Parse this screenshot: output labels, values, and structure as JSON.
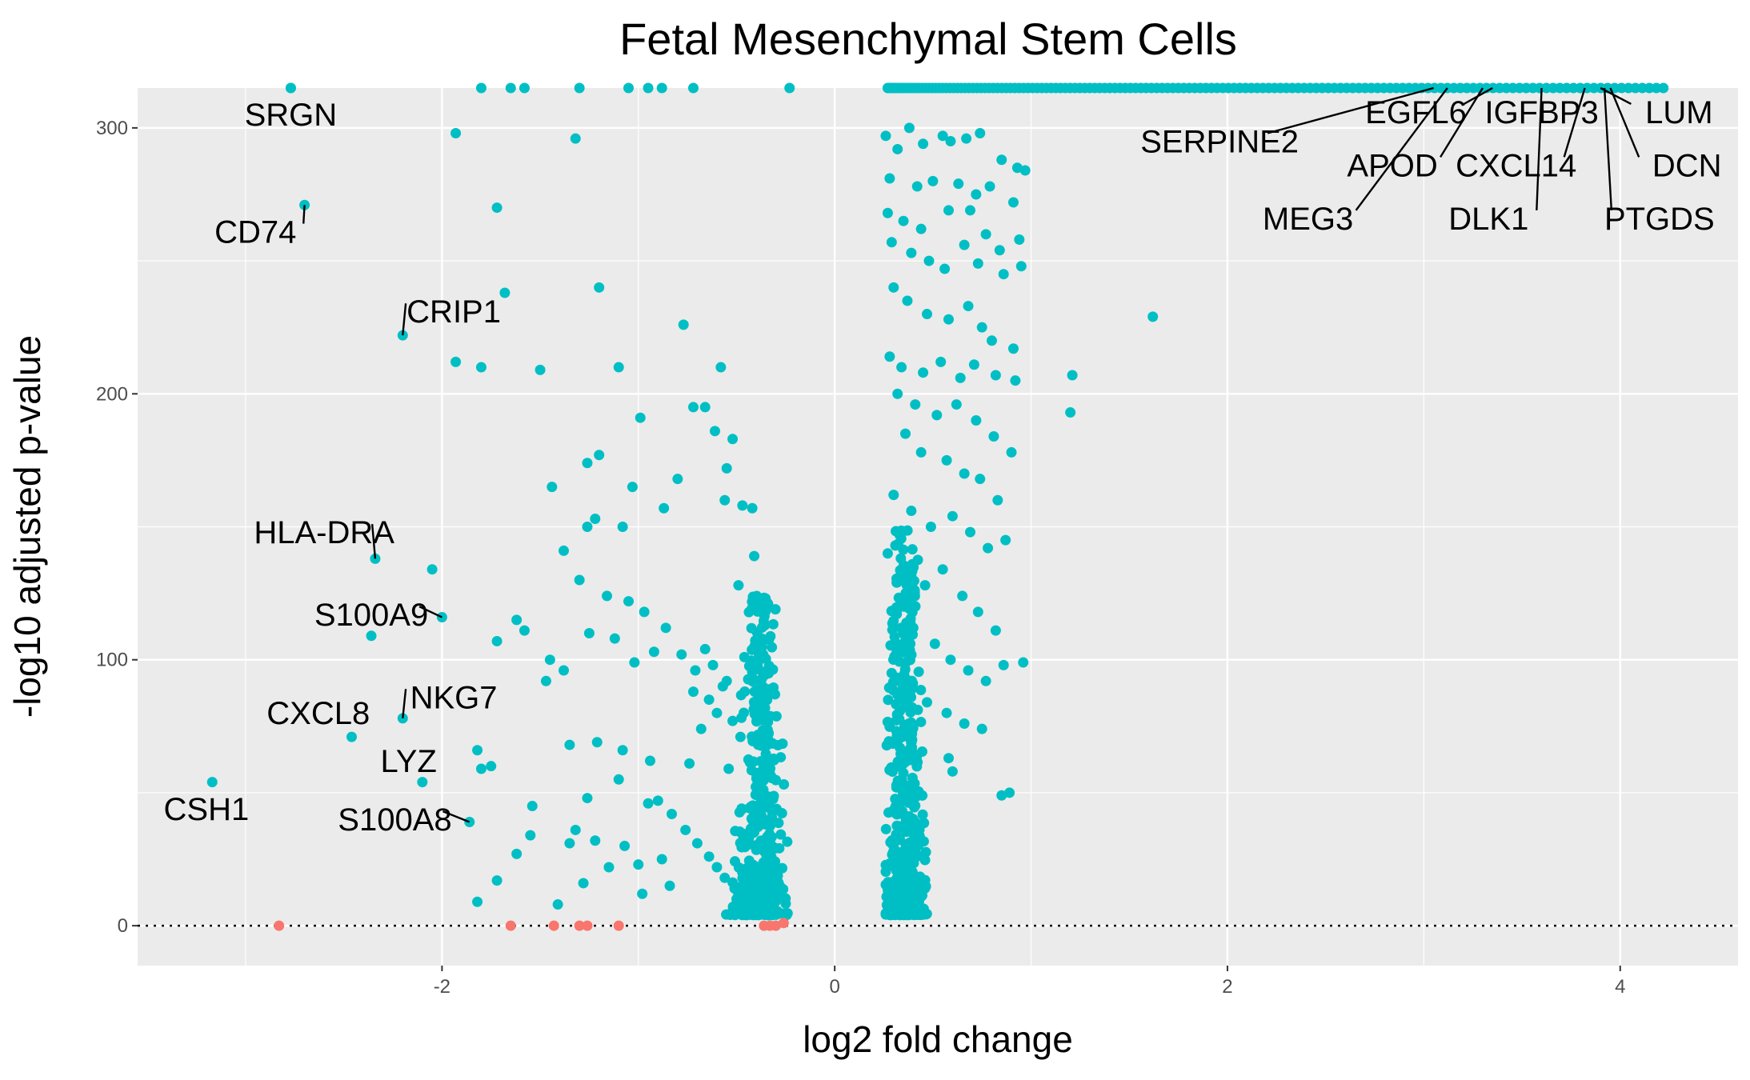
{
  "chart_data": {
    "type": "scatter",
    "title": "Fetal Mesenchymal Stem Cells",
    "xlabel": "log2 fold change",
    "ylabel": "-log10 adjusted p-value",
    "xlim": [
      -3.55,
      4.6
    ],
    "ylim": [
      -15,
      315
    ],
    "xticks": [
      -2,
      0,
      2,
      4
    ],
    "yticks": [
      0,
      100,
      200,
      300
    ],
    "grid": true,
    "threshold_line": {
      "y": 0,
      "style": "dotted"
    },
    "colors": {
      "significant": "#00BFC4",
      "not_significant": "#F8766D",
      "panel": "#EBEBEB",
      "grid": "#FFFFFF"
    },
    "labels": [
      {
        "text": "SRGN",
        "x": -2.77,
        "y": 315,
        "tx": -2.77,
        "ty": 305
      },
      {
        "text": "CD74",
        "x": -2.7,
        "y": 271,
        "tx": -2.95,
        "ty": 261
      },
      {
        "text": "CRIP1",
        "x": -2.2,
        "y": 222,
        "tx": -1.94,
        "ty": 231
      },
      {
        "text": "HLA-DRA",
        "x": -2.34,
        "y": 138,
        "tx": -2.6,
        "ty": 148
      },
      {
        "text": "S100A9",
        "x": -2.0,
        "y": 116,
        "tx": -2.36,
        "ty": 117
      },
      {
        "text": "NKG7",
        "x": -2.2,
        "y": 78,
        "tx": -1.94,
        "ty": 86
      },
      {
        "text": "CXCL8",
        "x": -2.46,
        "y": 71,
        "tx": -2.63,
        "ty": 80
      },
      {
        "text": "LYZ",
        "x": -2.1,
        "y": 54,
        "tx": -2.17,
        "ty": 62
      },
      {
        "text": "S100A8",
        "x": -1.86,
        "y": 39,
        "tx": -2.24,
        "ty": 40
      },
      {
        "text": "CSH1",
        "x": -3.17,
        "y": 54,
        "tx": -3.2,
        "ty": 44
      },
      {
        "text": "SERPINE2",
        "x": 3.05,
        "y": 315,
        "tx": 1.96,
        "ty": 295
      },
      {
        "text": "EGFL6",
        "x": 3.35,
        "y": 315,
        "tx": 2.96,
        "ty": 306
      },
      {
        "text": "IGFBP3",
        "x": 3.75,
        "y": 315,
        "tx": 3.6,
        "ty": 306
      },
      {
        "text": "LUM",
        "x": 3.9,
        "y": 315,
        "tx": 4.3,
        "ty": 306
      },
      {
        "text": "APOD",
        "x": 3.3,
        "y": 315,
        "tx": 2.84,
        "ty": 286
      },
      {
        "text": "CXCL14",
        "x": 3.82,
        "y": 315,
        "tx": 3.47,
        "ty": 286
      },
      {
        "text": "DCN",
        "x": 3.95,
        "y": 315,
        "tx": 4.34,
        "ty": 286
      },
      {
        "text": "MEG3",
        "x": 3.12,
        "y": 315,
        "tx": 2.41,
        "ty": 266
      },
      {
        "text": "DLK1",
        "x": 3.6,
        "y": 315,
        "tx": 3.33,
        "ty": 266
      },
      {
        "text": "PTGDS",
        "x": 3.92,
        "y": 315,
        "tx": 4.2,
        "ty": 266
      }
    ],
    "points_significant": [
      [
        -2.77,
        315
      ],
      [
        -2.7,
        271
      ],
      [
        -2.2,
        222
      ],
      [
        -2.34,
        138
      ],
      [
        -2.0,
        116
      ],
      [
        -2.2,
        78
      ],
      [
        -2.46,
        71
      ],
      [
        -2.1,
        54
      ],
      [
        -1.86,
        39
      ],
      [
        -3.17,
        54
      ],
      [
        -1.93,
        298
      ],
      [
        -1.72,
        270
      ],
      [
        -1.68,
        238
      ],
      [
        -1.93,
        212
      ],
      [
        -1.8,
        210
      ],
      [
        -1.5,
        209
      ],
      [
        -1.2,
        240
      ],
      [
        -1.1,
        210
      ],
      [
        -0.77,
        226
      ],
      [
        -0.58,
        210
      ],
      [
        -1.32,
        296
      ],
      [
        -2.05,
        134
      ],
      [
        -2.36,
        109
      ],
      [
        -1.62,
        115
      ],
      [
        -1.72,
        107
      ],
      [
        -1.58,
        111
      ],
      [
        -1.44,
        165
      ],
      [
        -1.2,
        177
      ],
      [
        -1.26,
        174
      ],
      [
        -1.03,
        165
      ],
      [
        -0.99,
        191
      ],
      [
        -0.72,
        195
      ],
      [
        -0.66,
        195
      ],
      [
        -0.61,
        186
      ],
      [
        -0.52,
        183
      ],
      [
        -0.55,
        172
      ],
      [
        -0.56,
        160
      ],
      [
        -0.47,
        158
      ],
      [
        -0.8,
        168
      ],
      [
        -0.87,
        157
      ],
      [
        -0.42,
        157
      ],
      [
        -1.08,
        150
      ],
      [
        -1.22,
        153
      ],
      [
        -1.26,
        150
      ],
      [
        -1.38,
        141
      ],
      [
        -1.3,
        130
      ],
      [
        -1.16,
        124
      ],
      [
        -1.05,
        122
      ],
      [
        -0.97,
        118
      ],
      [
        -0.92,
        103
      ],
      [
        -0.86,
        112
      ],
      [
        -0.78,
        102
      ],
      [
        -0.71,
        96
      ],
      [
        -0.66,
        104
      ],
      [
        -0.62,
        98
      ],
      [
        -0.55,
        92
      ],
      [
        -0.49,
        128
      ],
      [
        -0.41,
        139
      ],
      [
        -0.46,
        101
      ],
      [
        -0.36,
        82
      ],
      [
        -1.45,
        100
      ],
      [
        -1.38,
        96
      ],
      [
        -1.47,
        92
      ],
      [
        -1.12,
        108
      ],
      [
        -1.02,
        99
      ],
      [
        -1.25,
        110
      ],
      [
        -1.21,
        69
      ],
      [
        -1.08,
        66
      ],
      [
        -1.35,
        68
      ],
      [
        -0.94,
        62
      ],
      [
        -1.1,
        55
      ],
      [
        -1.26,
        48
      ],
      [
        -1.32,
        36
      ],
      [
        -1.22,
        32
      ],
      [
        -1.35,
        31
      ],
      [
        -1.07,
        30
      ],
      [
        -1.0,
        23
      ],
      [
        -1.15,
        22
      ],
      [
        -1.28,
        16
      ],
      [
        -1.41,
        8
      ],
      [
        -1.55,
        34
      ],
      [
        -1.62,
        27
      ],
      [
        -1.82,
        66
      ],
      [
        -1.8,
        59
      ],
      [
        -1.75,
        60
      ],
      [
        -1.82,
        9
      ],
      [
        -1.72,
        17
      ],
      [
        -1.54,
        45
      ],
      [
        -0.98,
        12
      ],
      [
        -0.9,
        47
      ],
      [
        -0.83,
        42
      ],
      [
        -0.76,
        36
      ],
      [
        -0.7,
        31
      ],
      [
        -0.64,
        26
      ],
      [
        -0.6,
        22
      ],
      [
        -0.56,
        18
      ],
      [
        -0.51,
        14
      ],
      [
        -0.5,
        10
      ],
      [
        -0.95,
        46
      ],
      [
        -0.88,
        25
      ],
      [
        -0.84,
        15
      ],
      [
        -0.74,
        61
      ],
      [
        -0.68,
        74
      ],
      [
        -0.6,
        80
      ],
      [
        -0.72,
        88
      ],
      [
        -0.64,
        85
      ],
      [
        -0.57,
        90
      ],
      [
        -0.52,
        77
      ],
      [
        -0.48,
        71
      ],
      [
        -0.54,
        59
      ],
      [
        0.26,
        297
      ],
      [
        0.32,
        292
      ],
      [
        0.38,
        300
      ],
      [
        0.45,
        294
      ],
      [
        0.55,
        297
      ],
      [
        0.59,
        295
      ],
      [
        0.67,
        296
      ],
      [
        0.74,
        298
      ],
      [
        0.85,
        288
      ],
      [
        0.93,
        285
      ],
      [
        0.97,
        284
      ],
      [
        0.28,
        281
      ],
      [
        0.42,
        278
      ],
      [
        0.5,
        280
      ],
      [
        0.63,
        279
      ],
      [
        0.72,
        275
      ],
      [
        0.79,
        278
      ],
      [
        0.91,
        272
      ],
      [
        0.27,
        268
      ],
      [
        0.35,
        265
      ],
      [
        0.44,
        262
      ],
      [
        0.58,
        269
      ],
      [
        0.69,
        269
      ],
      [
        0.77,
        260
      ],
      [
        0.84,
        254
      ],
      [
        0.94,
        258
      ],
      [
        0.29,
        257
      ],
      [
        0.39,
        253
      ],
      [
        0.48,
        250
      ],
      [
        0.56,
        247
      ],
      [
        0.66,
        256
      ],
      [
        0.73,
        249
      ],
      [
        0.86,
        245
      ],
      [
        0.95,
        248
      ],
      [
        0.3,
        240
      ],
      [
        0.37,
        235
      ],
      [
        0.47,
        230
      ],
      [
        0.58,
        228
      ],
      [
        0.68,
        233
      ],
      [
        0.75,
        225
      ],
      [
        0.8,
        220
      ],
      [
        0.91,
        217
      ],
      [
        0.28,
        214
      ],
      [
        0.34,
        210
      ],
      [
        0.45,
        208
      ],
      [
        0.54,
        212
      ],
      [
        0.64,
        206
      ],
      [
        0.71,
        211
      ],
      [
        0.82,
        207
      ],
      [
        0.92,
        205
      ],
      [
        0.32,
        200
      ],
      [
        0.41,
        196
      ],
      [
        0.52,
        192
      ],
      [
        0.62,
        196
      ],
      [
        0.72,
        190
      ],
      [
        0.81,
        184
      ],
      [
        0.9,
        178
      ],
      [
        0.36,
        185
      ],
      [
        0.44,
        178
      ],
      [
        0.57,
        175
      ],
      [
        0.66,
        170
      ],
      [
        0.74,
        168
      ],
      [
        0.83,
        160
      ],
      [
        0.3,
        162
      ],
      [
        0.39,
        156
      ],
      [
        0.49,
        150
      ],
      [
        0.6,
        154
      ],
      [
        0.69,
        148
      ],
      [
        0.78,
        142
      ],
      [
        0.87,
        145
      ],
      [
        0.27,
        140
      ],
      [
        0.35,
        132
      ],
      [
        0.46,
        128
      ],
      [
        0.55,
        134
      ],
      [
        0.65,
        124
      ],
      [
        0.73,
        118
      ],
      [
        0.82,
        111
      ],
      [
        0.31,
        118
      ],
      [
        0.4,
        112
      ],
      [
        0.51,
        106
      ],
      [
        0.59,
        100
      ],
      [
        0.68,
        96
      ],
      [
        0.77,
        92
      ],
      [
        0.86,
        98
      ],
      [
        0.96,
        99
      ],
      [
        0.29,
        95
      ],
      [
        0.37,
        88
      ],
      [
        0.47,
        84
      ],
      [
        0.57,
        80
      ],
      [
        0.66,
        76
      ],
      [
        0.75,
        74
      ],
      [
        0.89,
        50
      ],
      [
        0.85,
        49
      ],
      [
        0.6,
        58
      ],
      [
        0.58,
        63
      ],
      [
        1.62,
        229
      ],
      [
        1.21,
        207
      ],
      [
        1.2,
        193
      ]
    ],
    "ns_points": [
      [
        -2.83,
        0
      ],
      [
        -1.65,
        0
      ],
      [
        -1.43,
        0
      ],
      [
        -1.3,
        0
      ],
      [
        -1.26,
        0
      ],
      [
        -1.1,
        0
      ],
      [
        -0.36,
        0
      ],
      [
        -0.33,
        0
      ],
      [
        -0.3,
        0
      ],
      [
        -0.26,
        1
      ]
    ],
    "cloud_neg": {
      "x_center": -0.38,
      "x_spread": 0.18,
      "y_max": 120,
      "count": 460,
      "seed": 11
    },
    "cloud_pos": {
      "x_center": 0.36,
      "x_spread": 0.14,
      "y_max": 145,
      "count": 460,
      "seed": 23
    },
    "cap_band": {
      "x_start": 0.27,
      "x_end": 4.22,
      "y": 315,
      "count": 150
    }
  }
}
